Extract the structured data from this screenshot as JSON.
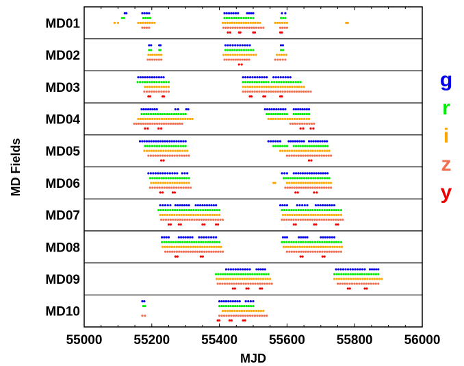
{
  "chart_data": {
    "type": "scatter",
    "xlabel": "MJD",
    "ylabel": "MD Fields",
    "xlim": [
      55000,
      56000
    ],
    "xticks": [
      55000,
      55200,
      55400,
      55600,
      55800,
      56000
    ],
    "fields": [
      "MD01",
      "MD02",
      "MD03",
      "MD04",
      "MD05",
      "MD06",
      "MD07",
      "MD08",
      "MD09",
      "MD10"
    ],
    "bands": [
      {
        "name": "g",
        "color": "#0000ee"
      },
      {
        "name": "r",
        "color": "#00ee00"
      },
      {
        "name": "i",
        "color": "#ffa500"
      },
      {
        "name": "z",
        "color": "#f07050"
      },
      {
        "name": "y",
        "color": "#ee0000"
      }
    ],
    "observations": {
      "MD01": {
        "g": [
          [
            55120,
            55125
          ],
          [
            55172,
            55192
          ],
          [
            55415,
            55455
          ],
          [
            55482,
            55500
          ],
          [
            55585,
            55595
          ]
        ],
        "r": [
          [
            55112,
            55118
          ],
          [
            55175,
            55195
          ],
          [
            55415,
            55500
          ],
          [
            55582,
            55595
          ]
        ],
        "i": [
          [
            55090,
            55100
          ],
          [
            55160,
            55208
          ],
          [
            55410,
            55520
          ],
          [
            55565,
            55600
          ],
          [
            55775,
            55780
          ]
        ],
        "z": [
          [
            55172,
            55192
          ],
          [
            55412,
            55530
          ],
          [
            55580,
            55600
          ]
        ],
        "y": [
          [
            55425,
            55432
          ],
          [
            55458,
            55462
          ],
          [
            55500,
            55505
          ],
          [
            55580,
            55585
          ]
        ]
      },
      "MD02": {
        "g": [
          [
            55192,
            55198
          ],
          [
            55222,
            55226
          ],
          [
            55418,
            55490
          ],
          [
            55582,
            55588
          ]
        ],
        "r": [
          [
            55192,
            55198
          ],
          [
            55222,
            55226
          ],
          [
            55418,
            55500
          ],
          [
            55582,
            55588
          ]
        ],
        "i": [
          [
            55190,
            55228
          ],
          [
            55412,
            55508
          ],
          [
            55570,
            55598
          ]
        ],
        "z": [
          [
            55188,
            55228
          ],
          [
            55415,
            55488
          ],
          [
            55565,
            55595
          ]
        ],
        "y": [
          [
            55458,
            55466
          ]
        ]
      },
      "MD03": {
        "g": [
          [
            55160,
            55235
          ],
          [
            55470,
            55540
          ],
          [
            55560,
            55610
          ]
        ],
        "r": [
          [
            55158,
            55250
          ],
          [
            55470,
            55545
          ],
          [
            55555,
            55640
          ]
        ],
        "i": [
          [
            55180,
            55250
          ],
          [
            55470,
            55650
          ]
        ],
        "z": [
          [
            55178,
            55250
          ],
          [
            55470,
            55670
          ]
        ],
        "y": [
          [
            55190,
            55195
          ],
          [
            55232,
            55236
          ],
          [
            55490,
            55495
          ],
          [
            55530,
            55535
          ],
          [
            55580,
            55585
          ]
        ]
      },
      "MD04": {
        "g": [
          [
            55170,
            55215
          ],
          [
            55270,
            55278
          ],
          [
            55302,
            55308
          ],
          [
            55535,
            55595
          ],
          [
            55620,
            55665
          ]
        ],
        "r": [
          [
            55170,
            55300
          ],
          [
            55540,
            55600
          ],
          [
            55620,
            55665
          ]
        ],
        "i": [
          [
            55160,
            55320
          ],
          [
            55545,
            55665
          ]
        ],
        "z": [
          [
            55148,
            55290
          ],
          [
            55610,
            55680
          ]
        ],
        "y": [
          [
            55180,
            55188
          ],
          [
            55220,
            55228
          ],
          [
            55640,
            55648
          ],
          [
            55670,
            55678
          ]
        ]
      },
      "MD05": {
        "g": [
          [
            55165,
            55300
          ],
          [
            55545,
            55580
          ],
          [
            55605,
            55650
          ],
          [
            55665,
            55718
          ]
        ],
        "r": [
          [
            55180,
            55300
          ],
          [
            55560,
            55600
          ],
          [
            55620,
            55720
          ]
        ],
        "i": [
          [
            55178,
            55305
          ],
          [
            55580,
            55725
          ]
        ],
        "z": [
          [
            55190,
            55310
          ],
          [
            55600,
            55730
          ]
        ],
        "y": [
          [
            55228,
            55235
          ],
          [
            55665,
            55672
          ]
        ]
      },
      "MD06": {
        "g": [
          [
            55190,
            55275
          ],
          [
            55290,
            55305
          ],
          [
            55585,
            55600
          ],
          [
            55620,
            55720
          ]
        ],
        "r": [
          [
            55195,
            55310
          ],
          [
            55590,
            55725
          ]
        ],
        "i": [
          [
            55198,
            55310
          ],
          [
            55560,
            55565
          ],
          [
            55600,
            55730
          ]
        ],
        "z": [
          [
            55195,
            55315
          ],
          [
            55595,
            55730
          ]
        ],
        "y": [
          [
            55225,
            55232
          ],
          [
            55262,
            55268
          ],
          [
            55625,
            55632
          ],
          [
            55680,
            55688
          ]
        ]
      },
      "MD07": {
        "g": [
          [
            55225,
            55255
          ],
          [
            55270,
            55310
          ],
          [
            55330,
            55390
          ],
          [
            55580,
            55600
          ],
          [
            55630,
            55660
          ],
          [
            55685,
            55740
          ]
        ],
        "r": [
          [
            55220,
            55400
          ],
          [
            55585,
            55760
          ]
        ],
        "i": [
          [
            55225,
            55400
          ],
          [
            55588,
            55760
          ]
        ],
        "z": [
          [
            55228,
            55410
          ],
          [
            55585,
            55765
          ]
        ],
        "y": [
          [
            55250,
            55256
          ],
          [
            55280,
            55286
          ],
          [
            55350,
            55356
          ],
          [
            55390,
            55396
          ],
          [
            55620,
            55626
          ],
          [
            55680,
            55686
          ],
          [
            55745,
            55751
          ]
        ]
      },
      "MD08": {
        "g": [
          [
            55230,
            55250
          ],
          [
            55280,
            55320
          ],
          [
            55340,
            55390
          ],
          [
            55588,
            55600
          ],
          [
            55635,
            55660
          ],
          [
            55700,
            55740
          ]
        ],
        "r": [
          [
            55230,
            55400
          ],
          [
            55585,
            55760
          ]
        ],
        "i": [
          [
            55232,
            55405
          ],
          [
            55590,
            55762
          ]
        ],
        "z": [
          [
            55240,
            55410
          ],
          [
            55600,
            55760
          ]
        ],
        "y": [
          [
            55270,
            55276
          ],
          [
            55345,
            55351
          ],
          [
            55640,
            55646
          ],
          [
            55705,
            55711
          ]
        ]
      },
      "MD09": {
        "g": [
          [
            55420,
            55490
          ],
          [
            55510,
            55535
          ],
          [
            55745,
            55830
          ],
          [
            55845,
            55870
          ]
        ],
        "r": [
          [
            55390,
            55545
          ],
          [
            55740,
            55870
          ]
        ],
        "i": [
          [
            55392,
            55550
          ],
          [
            55740,
            55880
          ]
        ],
        "z": [
          [
            55395,
            55555
          ],
          [
            55750,
            55870
          ]
        ],
        "y": [
          [
            55440,
            55446
          ],
          [
            55480,
            55486
          ],
          [
            55520,
            55526
          ],
          [
            55780,
            55786
          ],
          [
            55830,
            55836
          ]
        ]
      },
      "MD10": {
        "g": [
          [
            55172,
            55178
          ],
          [
            55400,
            55460
          ],
          [
            55478,
            55500
          ]
        ],
        "r": [
          [
            55175,
            55180
          ],
          [
            55400,
            55500
          ]
        ],
        "i": [
          [
            55410,
            55530
          ]
        ],
        "z": [
          [
            55172,
            55180
          ],
          [
            55400,
            55540
          ]
        ],
        "y": [
          [
            55395,
            55400
          ],
          [
            55430,
            55436
          ],
          [
            55470,
            55476
          ]
        ]
      }
    }
  }
}
